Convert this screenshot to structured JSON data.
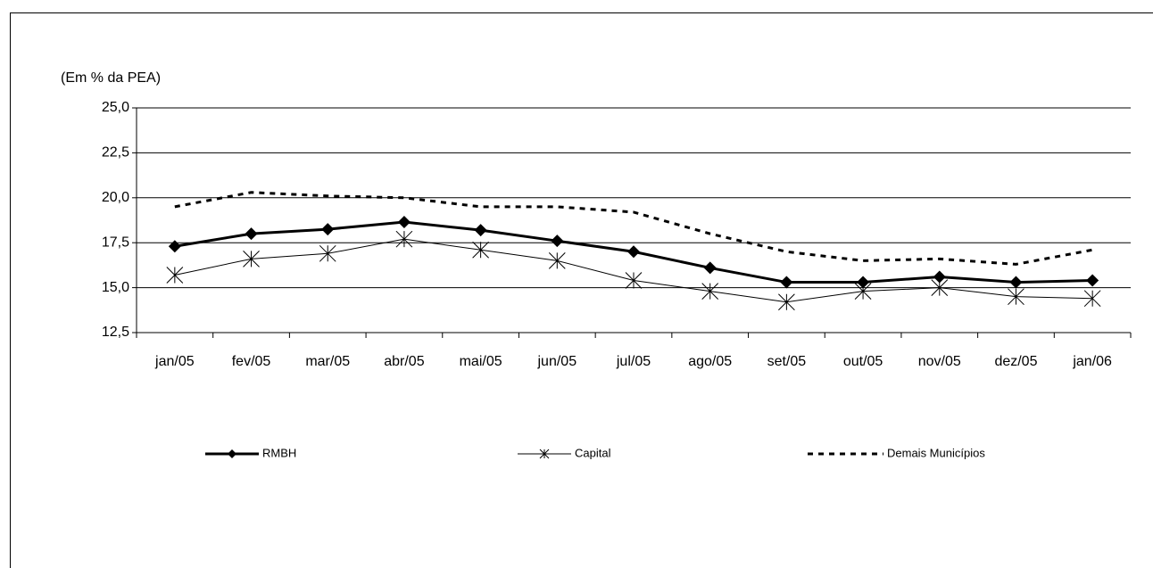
{
  "chart_data": {
    "type": "line",
    "y_label": "(Em % da PEA)",
    "categories": [
      "jan/05",
      "fev/05",
      "mar/05",
      "abr/05",
      "mai/05",
      "jun/05",
      "jul/05",
      "ago/05",
      "set/05",
      "out/05",
      "nov/05",
      "dez/05",
      "jan/06"
    ],
    "series": [
      {
        "name": "RMBH",
        "color": "#000000",
        "style": "solid-diamond",
        "values": [
          17.3,
          18.0,
          18.25,
          18.65,
          18.2,
          17.6,
          17.0,
          16.1,
          15.3,
          15.3,
          15.6,
          15.3,
          15.4
        ]
      },
      {
        "name": "Capital",
        "color": "#000000",
        "style": "thin-asterisk",
        "values": [
          15.7,
          16.6,
          16.9,
          17.7,
          17.1,
          16.5,
          15.4,
          14.8,
          14.2,
          14.8,
          15.0,
          14.5,
          14.4
        ]
      },
      {
        "name": "Demais Municípios",
        "color": "#000000",
        "style": "dotted",
        "values": [
          19.5,
          20.3,
          20.1,
          20.0,
          19.5,
          19.5,
          19.2,
          18.0,
          17.0,
          16.5,
          16.6,
          16.3,
          17.1
        ]
      }
    ],
    "ylim": [
      12.5,
      25
    ],
    "yticks": [
      {
        "value": 12.5,
        "label": "12,5"
      },
      {
        "value": 15,
        "label": "15,0"
      },
      {
        "value": 17.5,
        "label": "17,5"
      },
      {
        "value": 20,
        "label": "20,0"
      },
      {
        "value": 22.5,
        "label": "22,5"
      },
      {
        "value": 25,
        "label": "25,0"
      }
    ],
    "grid": true
  }
}
